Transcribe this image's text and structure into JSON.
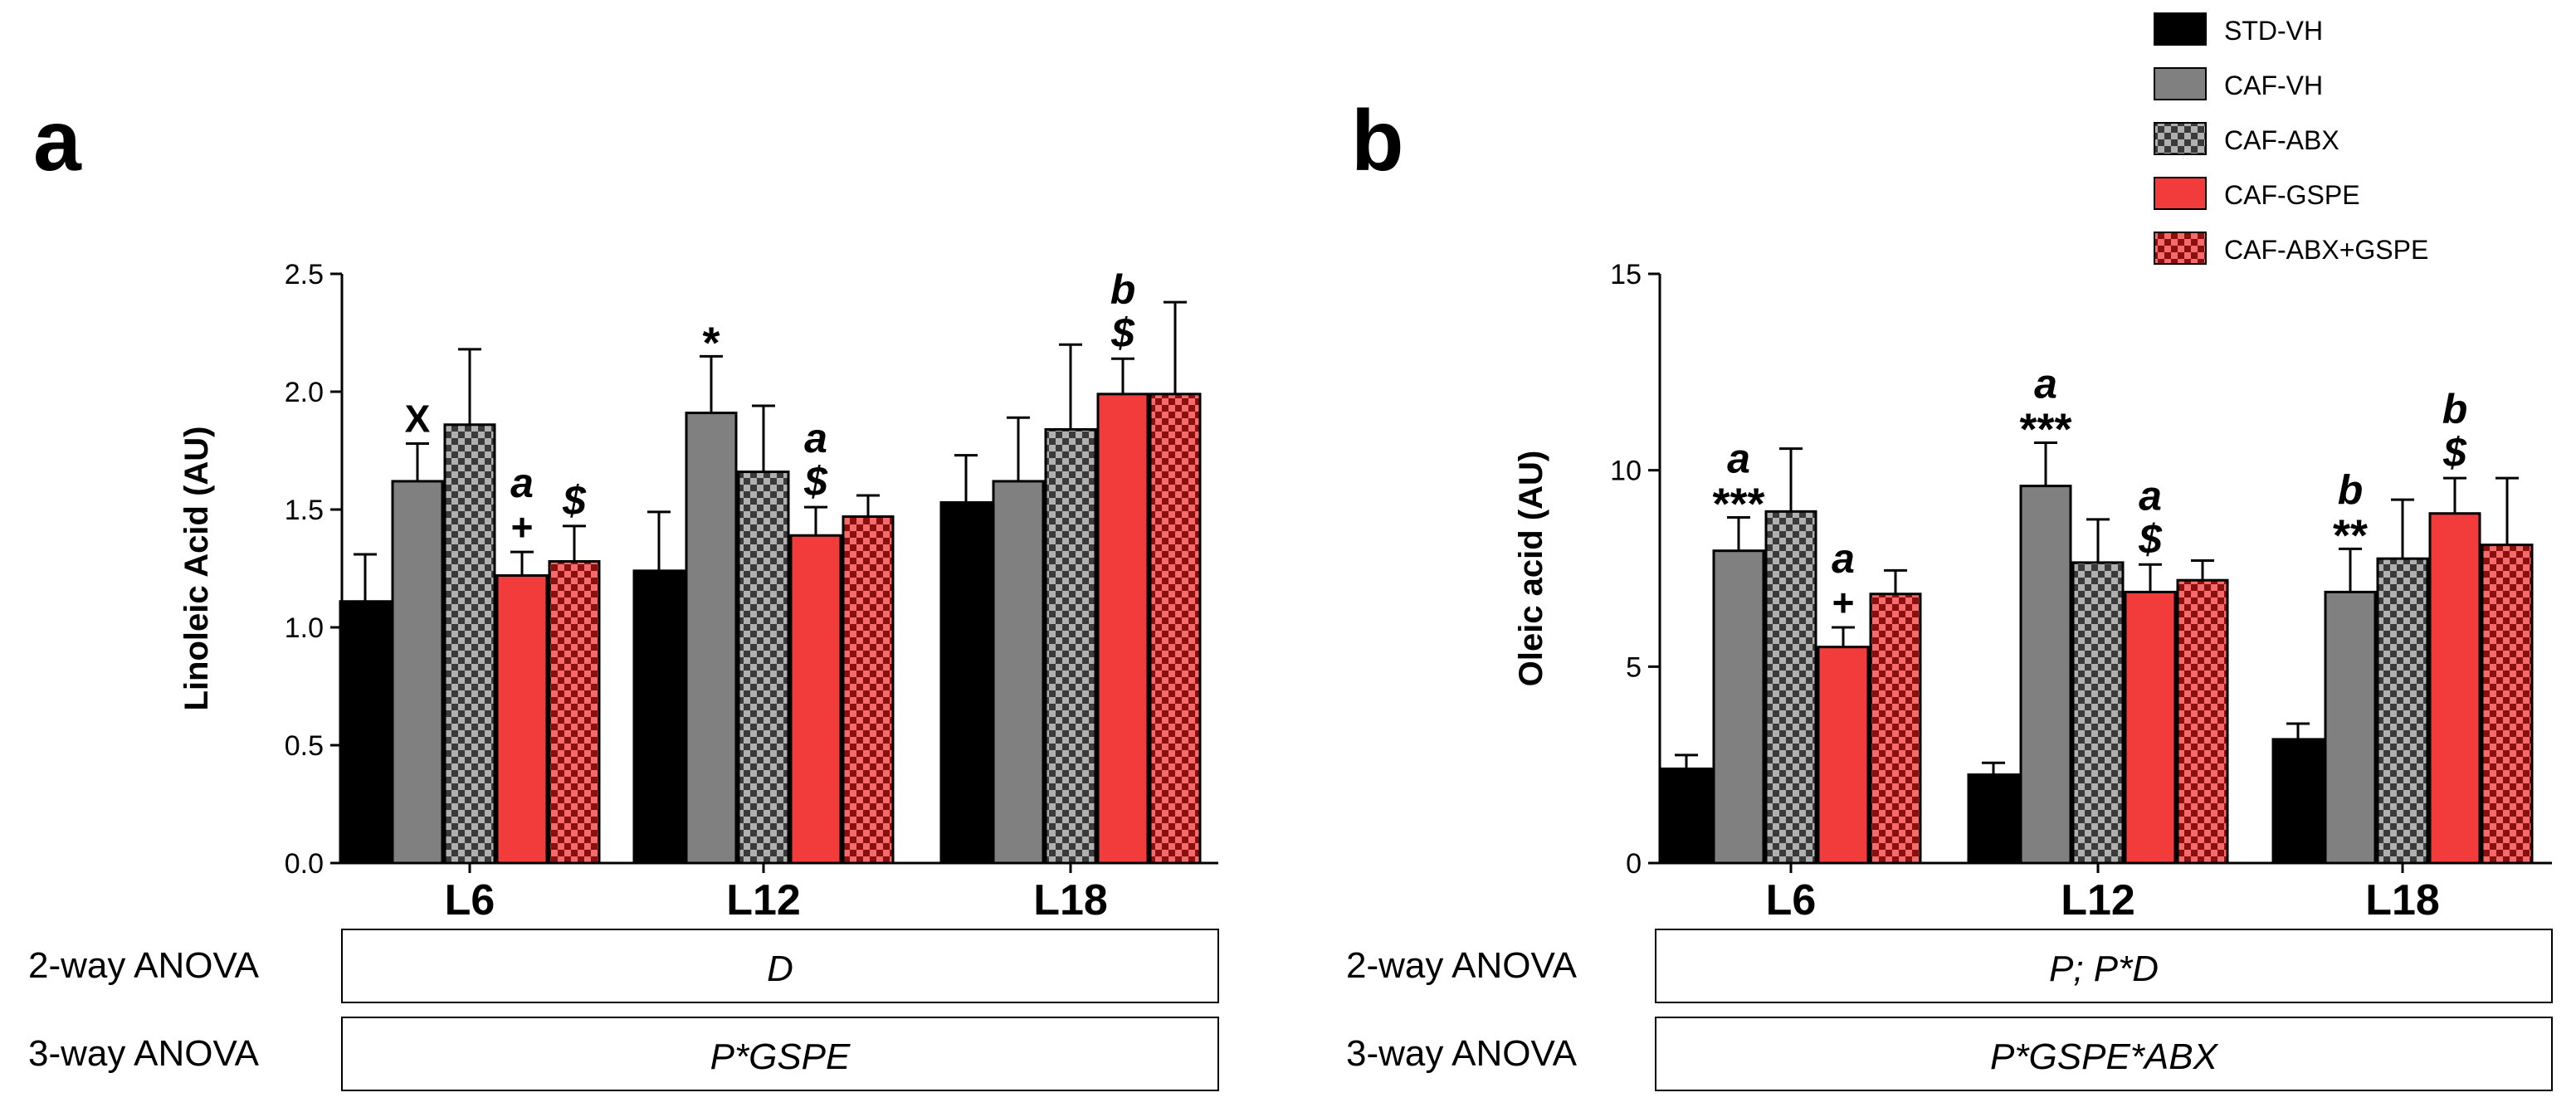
{
  "legend": [
    {
      "name": "STD-VH",
      "color": "#000000",
      "pattern": "solid"
    },
    {
      "name": "CAF-VH",
      "color": "#808080",
      "pattern": "solid"
    },
    {
      "name": "CAF-ABX",
      "color": "#808080",
      "pattern": "checker"
    },
    {
      "name": "CAF-GSPE",
      "color": "#f23b3b",
      "pattern": "solid"
    },
    {
      "name": "CAF-ABX+GSPE",
      "color": "#f23b3b",
      "pattern": "checker"
    }
  ],
  "chart_data": [
    {
      "type": "bar",
      "panel": "a",
      "ylabel": "Linoleic Acid (AU)",
      "ylim": [
        0,
        2.5
      ],
      "yticks": [
        "0.0",
        "0.5",
        "1.0",
        "1.5",
        "2.0",
        "2.5"
      ],
      "yticks_values": [
        0,
        0.5,
        1.0,
        1.5,
        2.0,
        2.5
      ],
      "categories": [
        "L6",
        "L12",
        "L18"
      ],
      "series": [
        {
          "name": "STD-VH",
          "values": [
            1.11,
            1.24,
            1.53
          ],
          "errors": [
            0.2,
            0.25,
            0.2
          ]
        },
        {
          "name": "CAF-VH",
          "values": [
            1.62,
            1.91,
            1.62
          ],
          "errors": [
            0.16,
            0.24,
            0.27
          ]
        },
        {
          "name": "CAF-ABX",
          "values": [
            1.86,
            1.66,
            1.84
          ],
          "errors": [
            0.32,
            0.28,
            0.36
          ]
        },
        {
          "name": "CAF-GSPE",
          "values": [
            1.22,
            1.39,
            1.99
          ],
          "errors": [
            0.1,
            0.12,
            0.15
          ]
        },
        {
          "name": "CAF-ABX+GSPE",
          "values": [
            1.28,
            1.47,
            1.99
          ],
          "errors": [
            0.15,
            0.09,
            0.39
          ]
        }
      ],
      "annotations": [
        {
          "cat": 0,
          "series": 1,
          "lines": [
            {
              "text": "X",
              "color": "#000000"
            }
          ]
        },
        {
          "cat": 0,
          "series": 3,
          "lines": [
            {
              "text": "a",
              "color": "#f23b3b",
              "italic": true
            },
            {
              "text": "+",
              "color": "#000000"
            }
          ]
        },
        {
          "cat": 0,
          "series": 4,
          "lines": [
            {
              "text": "$",
              "color": "#000000",
              "italic": true
            }
          ]
        },
        {
          "cat": 1,
          "series": 1,
          "lines": [
            {
              "text": "*",
              "color": "#000000"
            }
          ]
        },
        {
          "cat": 1,
          "series": 3,
          "lines": [
            {
              "text": "a",
              "color": "#f23b3b",
              "italic": true
            },
            {
              "text": "$",
              "color": "#000000",
              "italic": true
            }
          ]
        },
        {
          "cat": 2,
          "series": 3,
          "lines": [
            {
              "text": "b",
              "color": "#f23b3b",
              "italic": true
            },
            {
              "text": "$",
              "color": "#000000",
              "italic": true
            }
          ]
        }
      ],
      "anova": [
        {
          "label": "2-way ANOVA",
          "value": "D"
        },
        {
          "label": "3-way ANOVA",
          "value": "P*GSPE"
        }
      ]
    },
    {
      "type": "bar",
      "panel": "b",
      "ylabel": "Oleic acid (AU)",
      "ylim": [
        0,
        15
      ],
      "yticks": [
        "0",
        "5",
        "10",
        "15"
      ],
      "yticks_values": [
        0,
        5,
        10,
        15
      ],
      "categories": [
        "L6",
        "L12",
        "L18"
      ],
      "series": [
        {
          "name": "STD-VH",
          "values": [
            2.4,
            2.25,
            3.15
          ],
          "errors": [
            0.35,
            0.3,
            0.4
          ]
        },
        {
          "name": "CAF-VH",
          "values": [
            7.95,
            9.6,
            6.9
          ],
          "errors": [
            0.85,
            1.1,
            1.1
          ]
        },
        {
          "name": "CAF-ABX",
          "values": [
            8.95,
            7.65,
            7.75
          ],
          "errors": [
            1.6,
            1.1,
            1.5
          ]
        },
        {
          "name": "CAF-GSPE",
          "values": [
            5.5,
            6.9,
            8.9
          ],
          "errors": [
            0.5,
            0.7,
            0.9
          ]
        },
        {
          "name": "CAF-ABX+GSPE",
          "values": [
            6.85,
            7.2,
            8.1
          ],
          "errors": [
            0.6,
            0.5,
            1.7
          ]
        }
      ],
      "annotations": [
        {
          "cat": 0,
          "series": 1,
          "lines": [
            {
              "text": "a",
              "color": "#909090",
              "italic": true
            },
            {
              "text": "***",
              "color": "#000000"
            }
          ]
        },
        {
          "cat": 0,
          "series": 3,
          "lines": [
            {
              "text": "a",
              "color": "#f23b3b",
              "italic": true
            },
            {
              "text": "+",
              "color": "#000000"
            }
          ]
        },
        {
          "cat": 1,
          "series": 1,
          "lines": [
            {
              "text": "a",
              "color": "#909090",
              "italic": true
            },
            {
              "text": "***",
              "color": "#000000"
            }
          ]
        },
        {
          "cat": 1,
          "series": 3,
          "lines": [
            {
              "text": "a",
              "color": "#f23b3b",
              "italic": true
            },
            {
              "text": "$",
              "color": "#000000",
              "italic": true
            }
          ]
        },
        {
          "cat": 2,
          "series": 1,
          "lines": [
            {
              "text": "b",
              "color": "#909090",
              "italic": true
            },
            {
              "text": "**",
              "color": "#000000"
            }
          ]
        },
        {
          "cat": 2,
          "series": 3,
          "lines": [
            {
              "text": "b",
              "color": "#f23b3b",
              "italic": true
            },
            {
              "text": "$",
              "color": "#000000",
              "italic": true
            }
          ]
        }
      ],
      "anova": [
        {
          "label": "2-way ANOVA",
          "value": "P; P*D"
        },
        {
          "label": "3-way ANOVA",
          "value": "P*GSPE*ABX"
        }
      ]
    }
  ]
}
